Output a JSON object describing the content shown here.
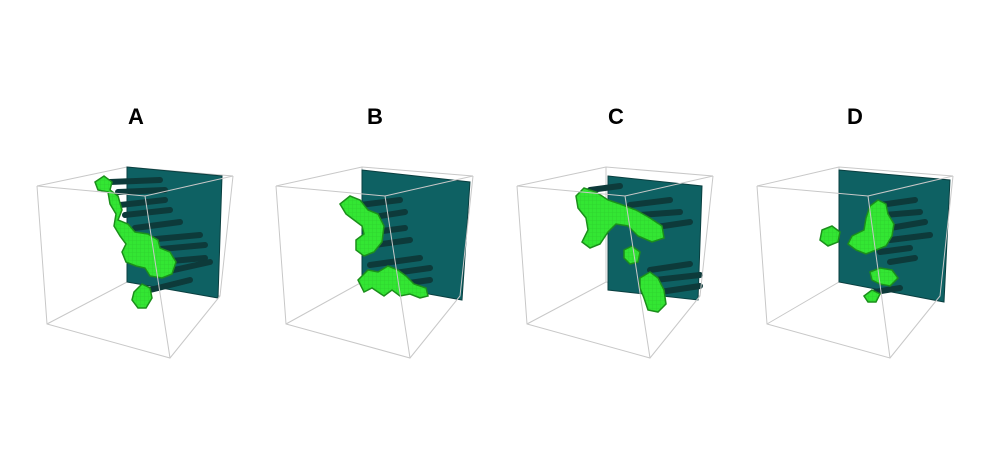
{
  "panels": [
    {
      "label": "A"
    },
    {
      "label": "B"
    },
    {
      "label": "C"
    },
    {
      "label": "D"
    }
  ],
  "colors": {
    "box_edge": "#c8c8c8",
    "plane_fill": "#0e6163",
    "plane_edge": "#0a3f40",
    "rod": "#0d3a3a",
    "blob_fill": "#33e633",
    "blob_edge": "#1b8f1b",
    "label": "#000000"
  }
}
